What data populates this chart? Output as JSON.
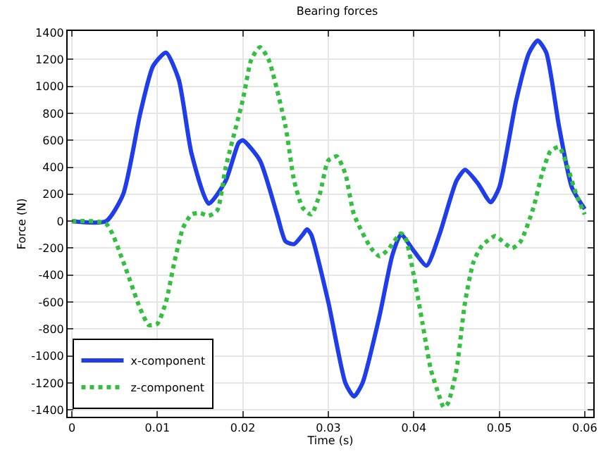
{
  "chart_data": {
    "type": "line",
    "title": "Bearing forces",
    "xlabel": "Time (s)",
    "ylabel": "Force (N)",
    "xlim": [
      -0.0005,
      0.061
    ],
    "ylim": [
      -1450,
      1410
    ],
    "xticks": [
      0,
      0.01,
      0.02,
      0.03,
      0.04,
      0.05,
      0.06
    ],
    "yticks": [
      -1400,
      -1200,
      -1000,
      -800,
      -600,
      -400,
      -200,
      0,
      200,
      400,
      600,
      800,
      1000,
      1200,
      1400
    ],
    "grid": true,
    "legend": "bottom left",
    "series": [
      {
        "name": "x-component",
        "color": "#1f3de8",
        "line_style": "solid",
        "x": [
          0,
          0.004,
          0.006,
          0.008,
          0.0095,
          0.011,
          0.0125,
          0.014,
          0.016,
          0.018,
          0.0195,
          0.02,
          0.022,
          0.024,
          0.025,
          0.026,
          0.027,
          0.0275,
          0.028,
          0.03,
          0.032,
          0.033,
          0.034,
          0.036,
          0.0375,
          0.0385,
          0.04,
          0.0415,
          0.043,
          0.045,
          0.046,
          0.0475,
          0.049,
          0.05,
          0.052,
          0.0535,
          0.0545,
          0.0555,
          0.057,
          0.0585,
          0.06
        ],
        "values": [
          0,
          0,
          200,
          800,
          1150,
          1250,
          1050,
          500,
          130,
          300,
          580,
          600,
          450,
          50,
          -150,
          -170,
          -100,
          -60,
          -100,
          -600,
          -1200,
          -1300,
          -1200,
          -700,
          -250,
          -100,
          -220,
          -330,
          -100,
          300,
          380,
          280,
          140,
          250,
          900,
          1250,
          1340,
          1250,
          700,
          250,
          90
        ]
      },
      {
        "name": "z-component",
        "color": "#33c040",
        "line_style": "dotted",
        "x": [
          0,
          0.004,
          0.006,
          0.008,
          0.009,
          0.01,
          0.011,
          0.012,
          0.013,
          0.014,
          0.015,
          0.016,
          0.017,
          0.018,
          0.02,
          0.021,
          0.022,
          0.023,
          0.025,
          0.026,
          0.027,
          0.028,
          0.029,
          0.03,
          0.031,
          0.032,
          0.033,
          0.035,
          0.036,
          0.037,
          0.0385,
          0.039,
          0.04,
          0.041,
          0.042,
          0.043,
          0.0435,
          0.044,
          0.045,
          0.046,
          0.047,
          0.048,
          0.0495,
          0.05,
          0.0515,
          0.0525,
          0.054,
          0.055,
          0.056,
          0.057,
          0.058,
          0.059,
          0.06
        ],
        "values": [
          0,
          -20,
          -300,
          -650,
          -770,
          -760,
          -600,
          -300,
          -50,
          50,
          60,
          40,
          80,
          400,
          900,
          1200,
          1290,
          1200,
          700,
          300,
          100,
          50,
          200,
          450,
          480,
          350,
          50,
          -200,
          -260,
          -210,
          -90,
          -120,
          -400,
          -750,
          -1100,
          -1300,
          -1380,
          -1350,
          -1100,
          -600,
          -300,
          -180,
          -110,
          -130,
          -200,
          -150,
          100,
          350,
          520,
          550,
          400,
          200,
          50
        ]
      }
    ]
  }
}
